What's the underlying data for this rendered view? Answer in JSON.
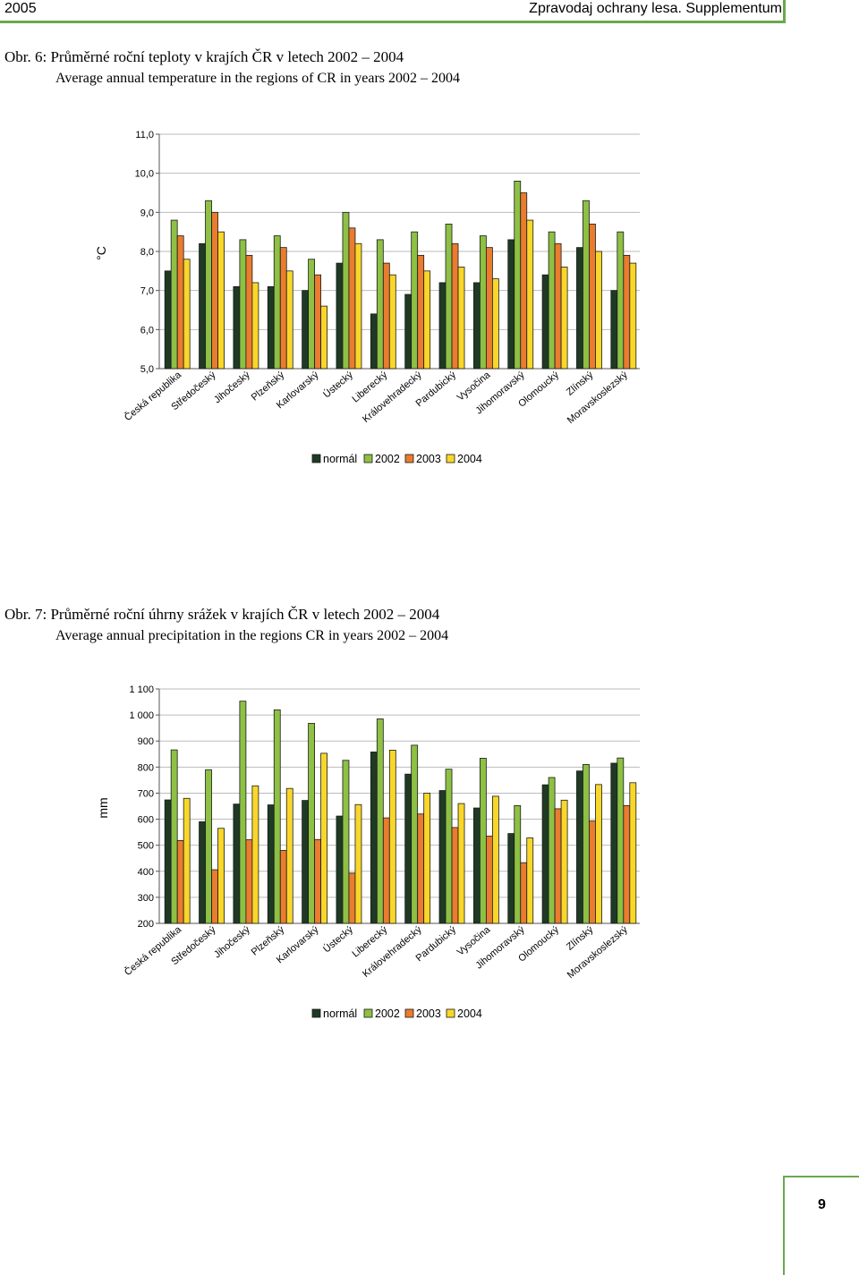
{
  "header": {
    "year": "2005",
    "publication": "Zpravodaj ochrany lesa. Supplementum"
  },
  "page_number": "9",
  "colors": {
    "normal": "#1f3a24",
    "2002": "#8dc044",
    "2003": "#e97c2f",
    "2004": "#f9d72a",
    "accent": "#6aa84f"
  },
  "figures": [
    {
      "title": "Obr. 6: Průměrné roční teploty v krajích ČR v letech 2002 – 2004",
      "subtitle": "Average annual temperature in the regions of CR in years 2002 – 2004"
    },
    {
      "title": "Obr. 7: Průměrné roční úhrny srážek v krajích ČR v letech 2002 – 2004",
      "subtitle": "Average annual precipitation in the regions CR in years 2002 – 2004"
    }
  ],
  "chart_data": [
    {
      "type": "bar",
      "ylabel": "°C",
      "ylim": [
        5.0,
        11.0
      ],
      "yticks": [
        "11,0",
        "10,0",
        "9,0",
        "8,0",
        "7,0",
        "6,0",
        "5,0"
      ],
      "grid": true,
      "legend_position": "bottom",
      "categories": [
        "Česká republika",
        "Středočeský",
        "Jihočeský",
        "Plzeňský",
        "Karlovarský",
        "Ústecký",
        "Liberecký",
        "Královehradecký",
        "Pardubický",
        "Vysočina",
        "Jihomoravský",
        "Olomoucký",
        "Zlínský",
        "Moravskoslezský"
      ],
      "series": [
        {
          "name": "normál",
          "values": [
            7.5,
            8.2,
            7.1,
            7.1,
            7.0,
            7.7,
            6.4,
            6.9,
            7.2,
            7.2,
            8.3,
            7.4,
            8.1,
            7.0
          ]
        },
        {
          "name": "2002",
          "values": [
            8.8,
            9.3,
            8.3,
            8.4,
            7.8,
            9.0,
            8.3,
            8.5,
            8.7,
            8.4,
            9.8,
            8.5,
            9.3,
            8.5
          ]
        },
        {
          "name": "2003",
          "values": [
            8.4,
            9.0,
            7.9,
            8.1,
            7.4,
            8.6,
            7.7,
            7.9,
            8.2,
            8.1,
            9.5,
            8.2,
            8.7,
            7.9
          ]
        },
        {
          "name": "2004",
          "values": [
            7.8,
            8.5,
            7.2,
            7.5,
            6.6,
            8.2,
            7.4,
            7.5,
            7.6,
            7.3,
            8.8,
            7.6,
            8.0,
            7.7
          ]
        }
      ]
    },
    {
      "type": "bar",
      "ylabel": "mm",
      "ylim": [
        200,
        1100
      ],
      "yticks": [
        "1 100",
        "1 000",
        "900",
        "800",
        "700",
        "600",
        "500",
        "400",
        "300",
        "200"
      ],
      "grid": true,
      "legend_position": "bottom",
      "categories": [
        "Česká republika",
        "Středočeský",
        "Jihočeský",
        "Plzeňský",
        "Karlovarský",
        "Ústecký",
        "Liberecký",
        "Královehradecký",
        "Pardubický",
        "Vysočina",
        "Jihomoravský",
        "Olomoucký",
        "Zlínský",
        "Moravskoslezský"
      ],
      "series": [
        {
          "name": "normál",
          "values": [
            674,
            590,
            658,
            655,
            672,
            612,
            858,
            773,
            710,
            643,
            545,
            732,
            785,
            815
          ]
        },
        {
          "name": "2002",
          "values": [
            866,
            790,
            1053,
            1020,
            968,
            826,
            985,
            884,
            792,
            834,
            652,
            760,
            810,
            835
          ]
        },
        {
          "name": "2003",
          "values": [
            518,
            406,
            521,
            480,
            522,
            393,
            605,
            620,
            568,
            535,
            433,
            640,
            593,
            652
          ]
        },
        {
          "name": "2004",
          "values": [
            680,
            565,
            728,
            718,
            853,
            656,
            865,
            700,
            660,
            688,
            528,
            673,
            733,
            740
          ]
        }
      ]
    }
  ]
}
